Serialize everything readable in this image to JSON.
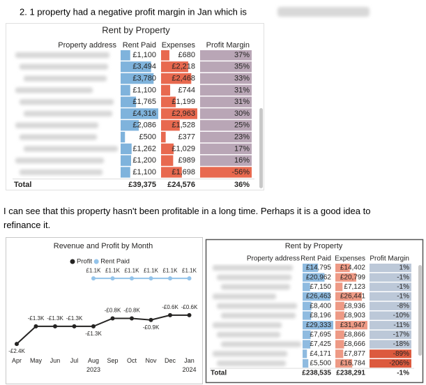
{
  "heading": "2.  1 property had a negative profit margin in Jan which is",
  "table_1": {
    "title": "Rent by Property",
    "columns": [
      "Property address",
      "Rent Paid",
      "Expenses",
      "Profit Margin"
    ],
    "rows": [
      [
        "£1,100",
        "£680",
        "37%"
      ],
      [
        "£3,494",
        "£2,218",
        "35%"
      ],
      [
        "£3,780",
        "£2,468",
        "33%"
      ],
      [
        "£1,100",
        "£744",
        "31%"
      ],
      [
        "£1,765",
        "£1,199",
        "31%"
      ],
      [
        "£4,316",
        "£2,963",
        "30%"
      ],
      [
        "£2,086",
        "£1,528",
        "25%"
      ],
      [
        "£500",
        "£377",
        "23%"
      ],
      [
        "£1,262",
        "£1,029",
        "17%"
      ],
      [
        "£1,200",
        "£989",
        "16%"
      ],
      [
        "£1,100",
        "£1,698",
        "-56%"
      ]
    ],
    "total": [
      "Total",
      "£39,375",
      "£24,576",
      "36%"
    ],
    "rent_color": "#7fb3dc",
    "expense_color": "#e8694f",
    "margin_color": "#b9a6b6",
    "negative_color": "#e8694f"
  },
  "paragraph": "I can see that this property hasn't been profitable in a long time. Perhaps it is a good idea to refinance it.",
  "chart_data": {
    "type": "line",
    "title": "Revenue and Profit by Month",
    "categories": [
      "Apr",
      "May",
      "Jun",
      "Jul",
      "Aug 2023",
      "Sep",
      "Oct",
      "Nov",
      "Dec",
      "Jan 2024"
    ],
    "series": [
      {
        "name": "Profit",
        "color": "#252423",
        "values": [
          -2.4,
          -1.3,
          -1.3,
          -1.3,
          -1.3,
          -0.8,
          -0.8,
          -0.9,
          -0.6,
          -0.6
        ],
        "value_labels": [
          "-£2.4K",
          "-£1.3K",
          "-£1.3K",
          "-£1.3K",
          "-£1.3K",
          "-£0.8K",
          "-£0.8K",
          "-£0.9K",
          "-£0.6K",
          "-£0.6K"
        ]
      },
      {
        "name": "Rent Paid",
        "color": "#93c3ea",
        "axis": "y2",
        "values": [
          null,
          null,
          null,
          null,
          1.1,
          1.1,
          1.1,
          1.1,
          1.1,
          1.1
        ],
        "value_labels": [
          null,
          null,
          null,
          null,
          "£1.1K",
          "£1.1K",
          "£1.1K",
          "£1.1K",
          "£1.1K",
          "£1.1K"
        ]
      }
    ],
    "ylim": [
      -2.7,
      2.1
    ],
    "y2lim": [
      0,
      1.2
    ],
    "legend": "top"
  },
  "table_2": {
    "title": "Rent by Property",
    "columns": [
      "Property address",
      "Rent Paid",
      "Expenses",
      "Profit Margin"
    ],
    "rows": [
      [
        "£14,795",
        "£14,402",
        "1%"
      ],
      [
        "£20,962",
        "£20,799",
        "-1%"
      ],
      [
        "£7,150",
        "£7,123",
        "-1%"
      ],
      [
        "£26,463",
        "£26,441",
        "-1%"
      ],
      [
        "£8,400",
        "£8,936",
        "-8%"
      ],
      [
        "£8,196",
        "£8,903",
        "-10%"
      ],
      [
        "£29,333",
        "£31,947",
        "-11%"
      ],
      [
        "£7,695",
        "£8,866",
        "-17%"
      ],
      [
        "£7,425",
        "£8,666",
        "-18%"
      ],
      [
        "£4,171",
        "£7,877",
        "-89%"
      ],
      [
        "£5,500",
        "£16,784",
        "-206%"
      ]
    ],
    "total": [
      "Total",
      "£238,535",
      "£238,291",
      "-1%"
    ],
    "rent_color": "#8fbbe0",
    "expense_color": "#ee9a85",
    "margin_color": "#bcc8d8",
    "negative_color": "#dc5a3e"
  }
}
